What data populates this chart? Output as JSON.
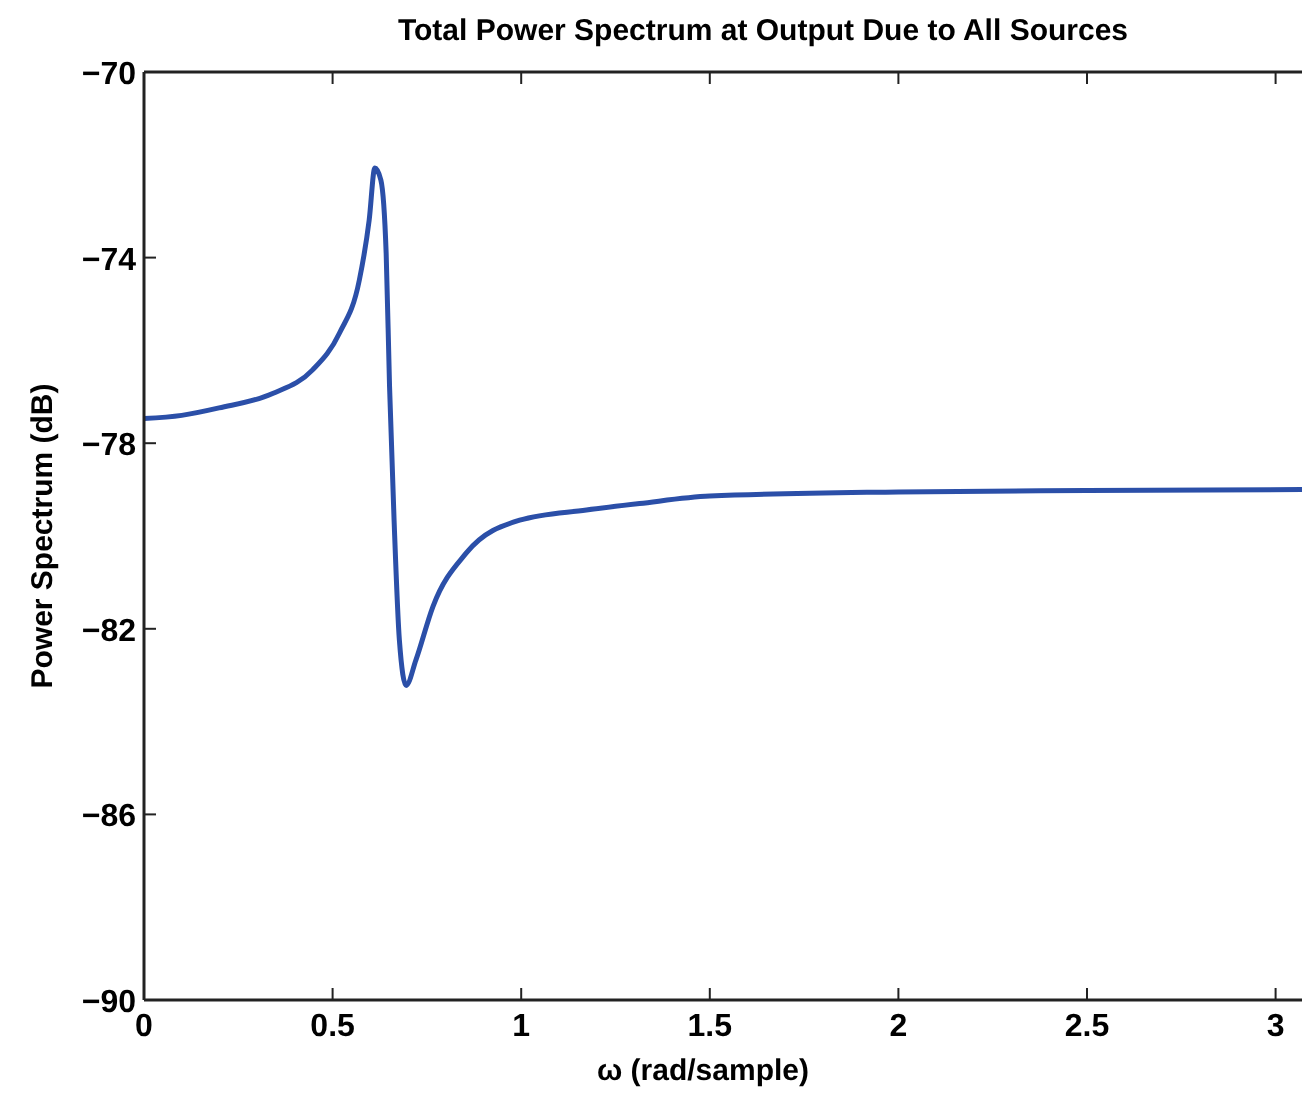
{
  "chart_data": {
    "type": "line",
    "title": "Total Power Spectrum at Output Due to All Sources",
    "xlabel": "ω (rad/sample)",
    "ylabel": "Power Spectrum (dB)",
    "xlim": [
      0,
      3.07
    ],
    "xticks": [
      0,
      0.5,
      1,
      1.5,
      2,
      2.5,
      3
    ],
    "ylim": [
      -90,
      -70
    ],
    "yticks": [
      -90,
      -86,
      -82,
      -78,
      -74,
      -70
    ],
    "grid": false,
    "marker": "none",
    "line_style": "solid",
    "series": [
      {
        "color": "#2b4fa8",
        "x": [
          0,
          0.1,
          0.199,
          0.341,
          0.447,
          0.518,
          0.571,
          0.597,
          0.612,
          0.628,
          0.642,
          0.651,
          0.663,
          0.677,
          0.695,
          0.721,
          0.766,
          0.854,
          0.996,
          1.173,
          1.314,
          1.5,
          2,
          2.5,
          3.07
        ],
        "values": [
          -77.47,
          -77.4,
          -77.24,
          -76.93,
          -76.42,
          -75.63,
          -74.48,
          -73.19,
          -72.07,
          -72.33,
          -73.91,
          -76.78,
          -79.66,
          -82.24,
          -83.22,
          -82.67,
          -81.52,
          -80.37,
          -79.66,
          -79.44,
          -79.3,
          -79.14,
          -79.05,
          -79.02,
          -79.0
        ]
      }
    ]
  }
}
